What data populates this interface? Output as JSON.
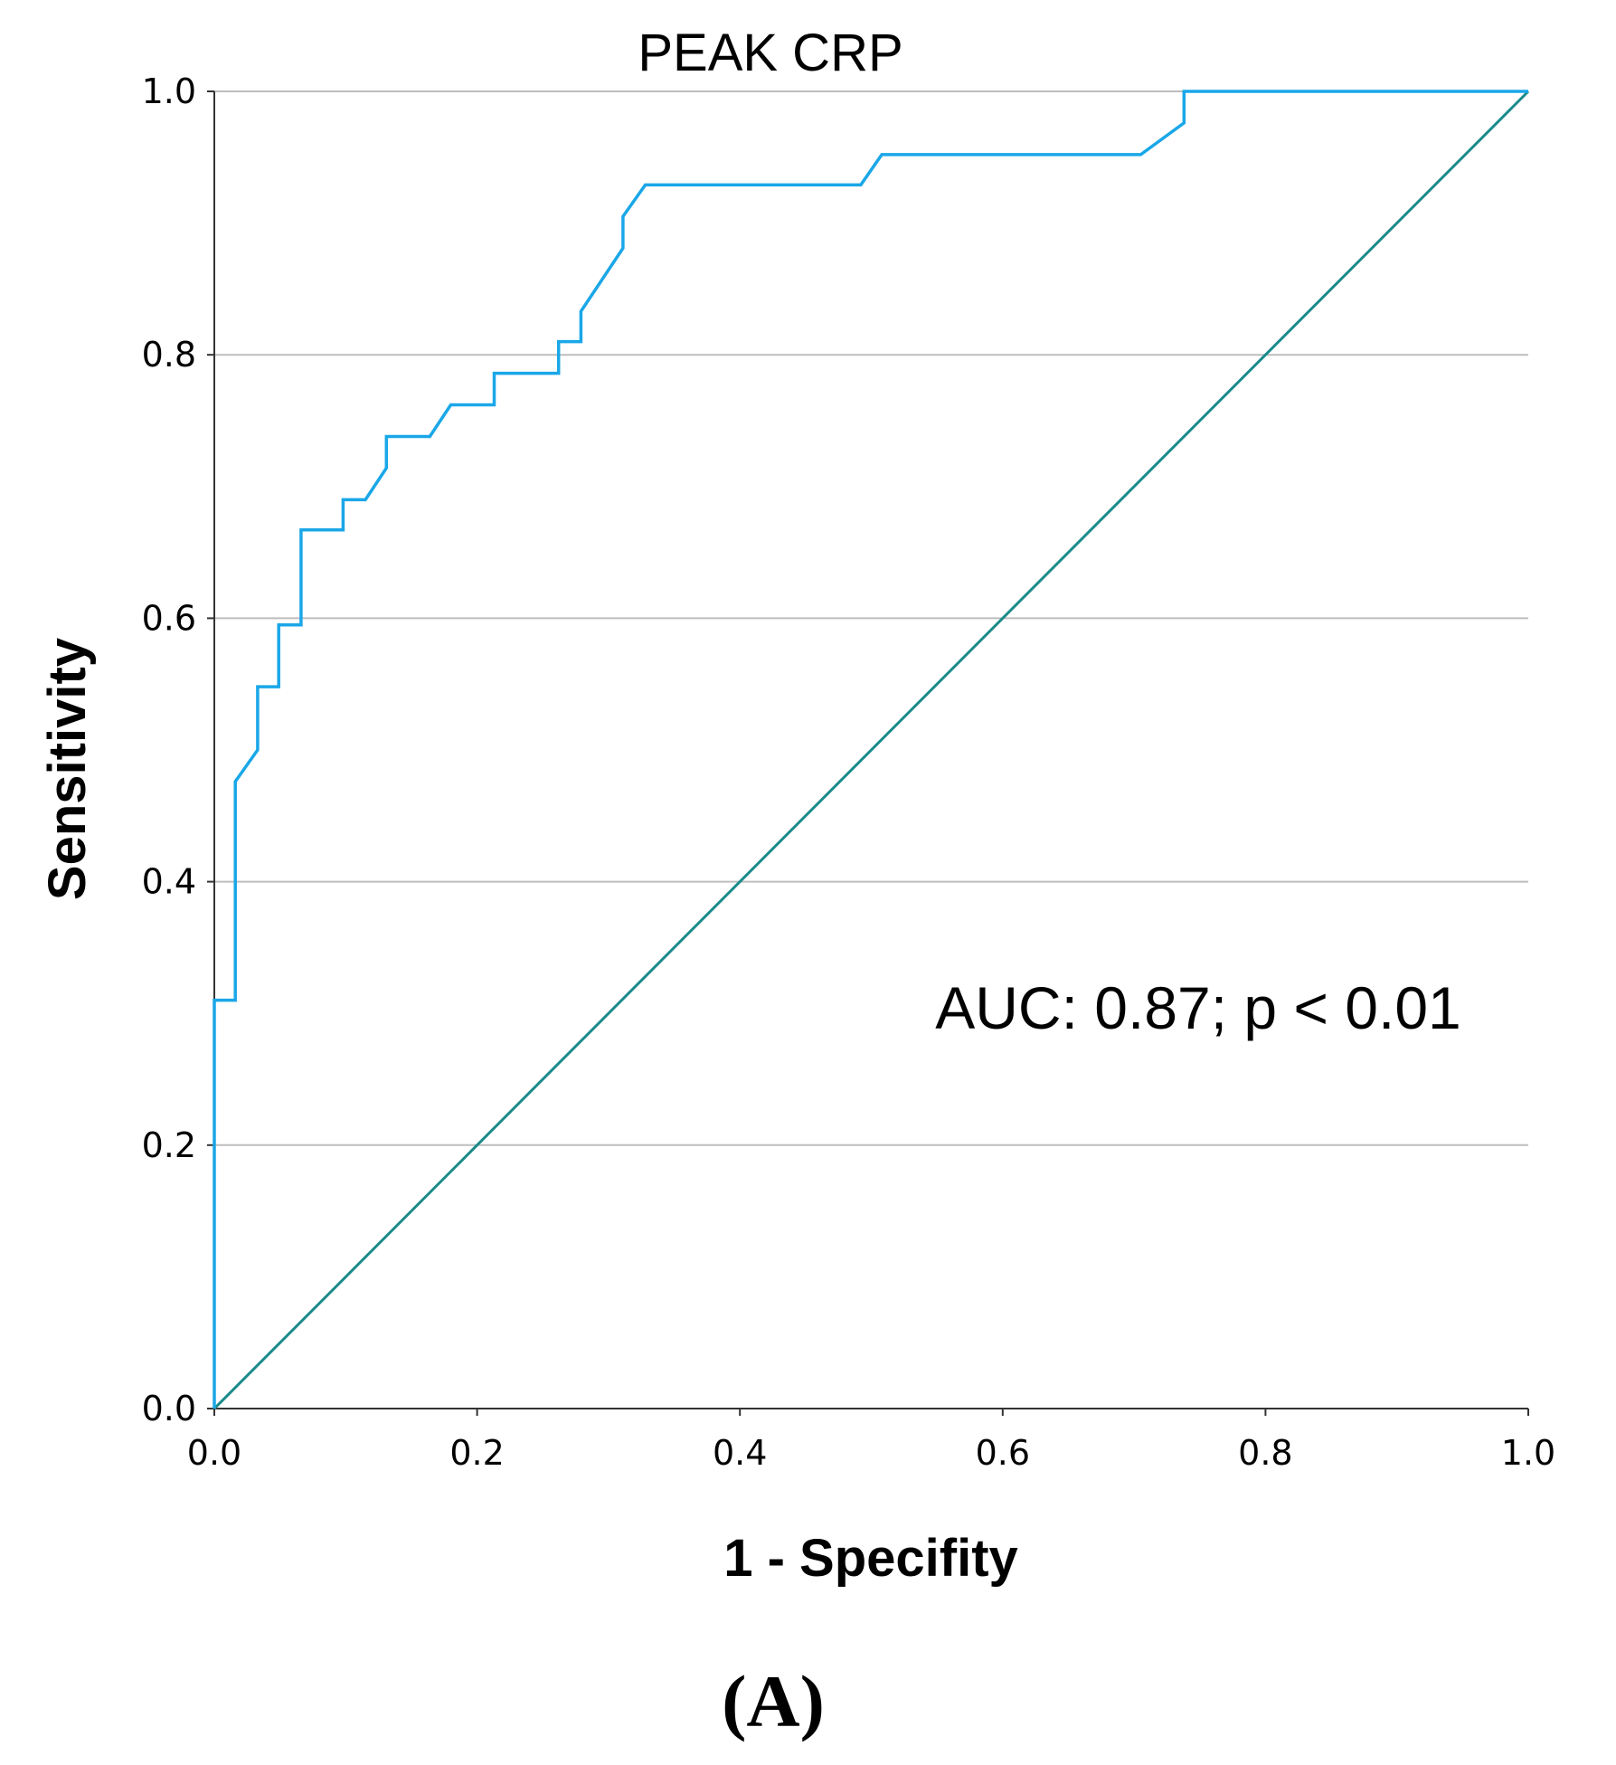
{
  "chart_data": {
    "type": "line",
    "title": "PEAK CRP",
    "xlabel": "1 - Specifity",
    "ylabel": "Sensitivity",
    "xlim": [
      0,
      1
    ],
    "ylim": [
      0,
      1
    ],
    "xticks": [
      "0.0",
      "0.2",
      "0.4",
      "0.6",
      "0.8",
      "1.0"
    ],
    "yticks": [
      "0.0",
      "0.2",
      "0.4",
      "0.6",
      "0.8",
      "1.0"
    ],
    "grid": "horizontal",
    "annotation": "AUC: 0.87; p < 0.01",
    "panel_label": "(A)",
    "colors": {
      "roc": "#1aa7e8",
      "reference": "#1b8a8a",
      "grid": "#bdbdbd",
      "axis": "#333333"
    },
    "series": [
      {
        "name": "ROC curve",
        "x": [
          0.0,
          0.0,
          0.016,
          0.016,
          0.033,
          0.033,
          0.049,
          0.049,
          0.066,
          0.066,
          0.098,
          0.098,
          0.115,
          0.131,
          0.131,
          0.164,
          0.18,
          0.213,
          0.213,
          0.262,
          0.262,
          0.279,
          0.279,
          0.311,
          0.311,
          0.328,
          0.492,
          0.508,
          0.705,
          0.738,
          0.738,
          1.0
        ],
        "y": [
          0.0,
          0.31,
          0.31,
          0.476,
          0.5,
          0.548,
          0.548,
          0.595,
          0.595,
          0.667,
          0.667,
          0.69,
          0.69,
          0.714,
          0.738,
          0.738,
          0.762,
          0.762,
          0.786,
          0.786,
          0.81,
          0.81,
          0.833,
          0.881,
          0.905,
          0.929,
          0.929,
          0.952,
          0.952,
          0.976,
          1.0,
          1.0
        ]
      },
      {
        "name": "Reference line",
        "x": [
          0,
          1
        ],
        "y": [
          0,
          1
        ]
      }
    ]
  }
}
